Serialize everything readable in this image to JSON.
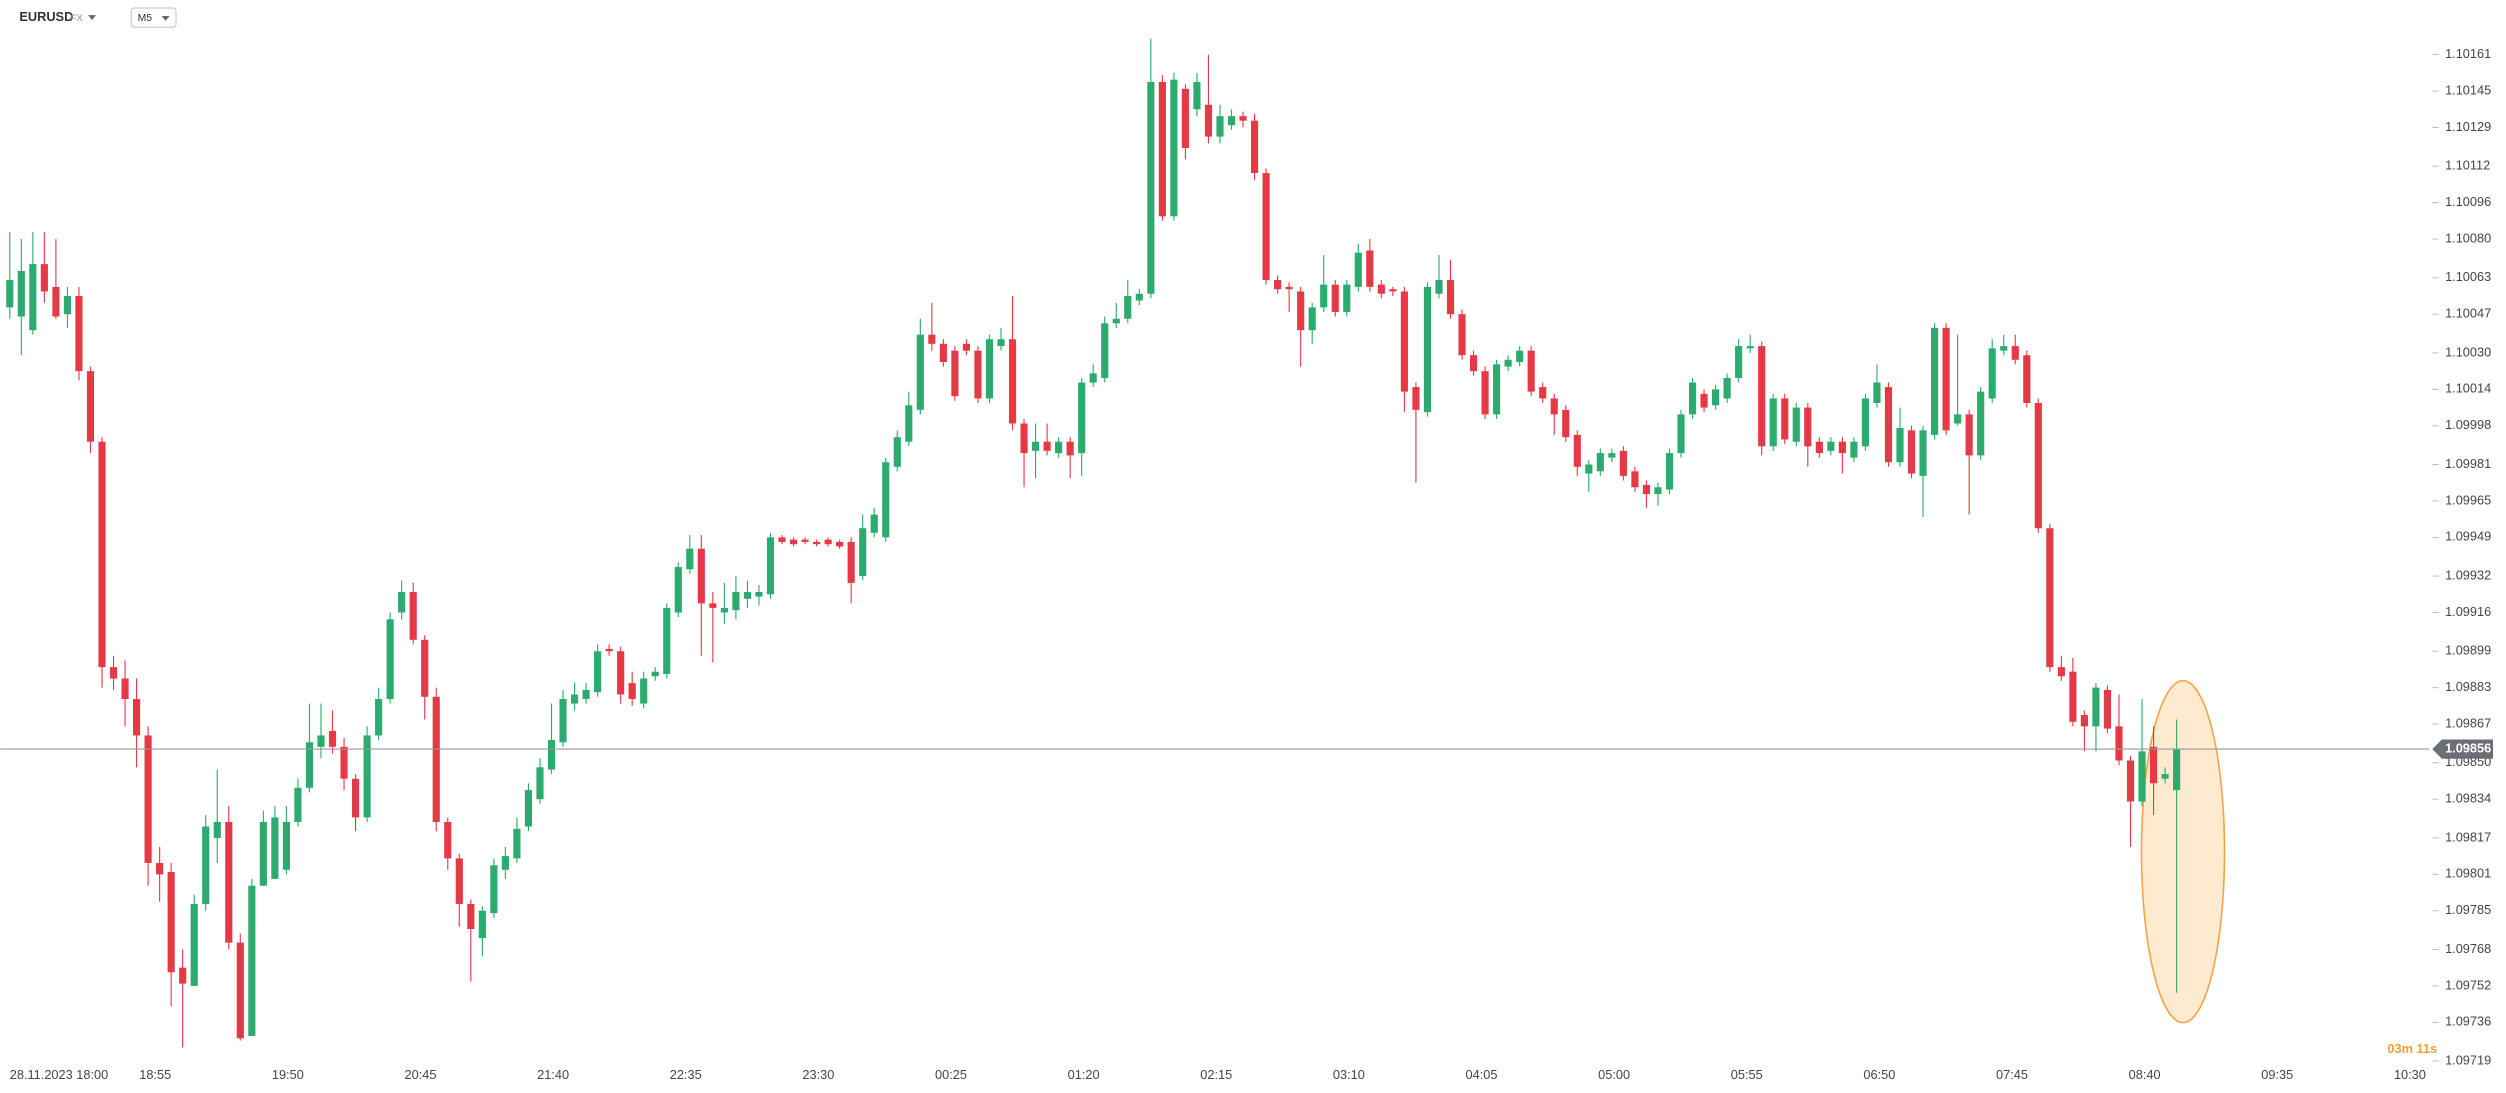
{
  "header": {
    "symbol": "EURUSD",
    "market": "FX",
    "timeframe": "M5"
  },
  "chart_data": {
    "type": "candlestick",
    "up_color": "#2bab6e",
    "down_color": "#e63946",
    "ylim": [
      1.09719,
      1.10185
    ],
    "yticks": [
      {
        "value": 1.10161,
        "label": "1.10161"
      },
      {
        "value": 1.10145,
        "label": "1.10145"
      },
      {
        "value": 1.10129,
        "label": "1.10129"
      },
      {
        "value": 1.10112,
        "label": "1.10112"
      },
      {
        "value": 1.10096,
        "label": "1.10096"
      },
      {
        "value": 1.1008,
        "label": "1.10080"
      },
      {
        "value": 1.10063,
        "label": "1.10063"
      },
      {
        "value": 1.10047,
        "label": "1.10047"
      },
      {
        "value": 1.1003,
        "label": "1.10030"
      },
      {
        "value": 1.10014,
        "label": "1.10014"
      },
      {
        "value": 1.09998,
        "label": "1.09998"
      },
      {
        "value": 1.09981,
        "label": "1.09981"
      },
      {
        "value": 1.09965,
        "label": "1.09965"
      },
      {
        "value": 1.09949,
        "label": "1.09949"
      },
      {
        "value": 1.09932,
        "label": "1.09932"
      },
      {
        "value": 1.09916,
        "label": "1.09916"
      },
      {
        "value": 1.09899,
        "label": "1.09899"
      },
      {
        "value": 1.09883,
        "label": "1.09883"
      },
      {
        "value": 1.09867,
        "label": "1.09867"
      },
      {
        "value": 1.0985,
        "label": "1.09850"
      },
      {
        "value": 1.09834,
        "label": "1.09834"
      },
      {
        "value": 1.09817,
        "label": "1.09817"
      },
      {
        "value": 1.09801,
        "label": "1.09801"
      },
      {
        "value": 1.09785,
        "label": "1.09785"
      },
      {
        "value": 1.09768,
        "label": "1.09768"
      },
      {
        "value": 1.09752,
        "label": "1.09752"
      },
      {
        "value": 1.09736,
        "label": "1.09736"
      },
      {
        "value": 1.09719,
        "label": "1.09719"
      }
    ],
    "start_label": "28.11.2023 18:00",
    "time_labels": [
      "18:55",
      "19:50",
      "20:45",
      "21:40",
      "22:35",
      "23:30",
      "00:25",
      "01:20",
      "02:15",
      "03:10",
      "04:05",
      "05:00",
      "05:55",
      "06:50",
      "07:45",
      "08:40",
      "09:35",
      "10:30"
    ],
    "current_price": {
      "value": 1.09856,
      "label": "1.09856"
    },
    "countdown": "03m 11s",
    "open": [
      1.1005,
      1.10046,
      1.1004,
      1.10069,
      1.10059,
      1.10047,
      1.10055,
      1.10022,
      1.09991,
      1.09892,
      1.09887,
      1.09878,
      1.09862,
      1.09806,
      1.09802,
      1.0976,
      1.09752,
      1.09788,
      1.09817,
      1.09824,
      1.09771,
      1.0973,
      1.09796,
      1.09799,
      1.09803,
      1.09824,
      1.09839,
      1.09857,
      1.09864,
      1.09857,
      1.09843,
      1.09826,
      1.09862,
      1.09878,
      1.09916,
      1.09925,
      1.09904,
      1.09879,
      1.09824,
      1.09808,
      1.09788,
      1.09773,
      1.09784,
      1.09803,
      1.09808,
      1.09822,
      1.09834,
      1.09847,
      1.09859,
      1.09876,
      1.09878,
      1.09881,
      1.099,
      1.09899,
      1.09885,
      1.09876,
      1.09888,
      1.09889,
      1.09916,
      1.09935,
      1.09944,
      1.0992,
      1.09916,
      1.09917,
      1.09922,
      1.09923,
      1.09924,
      1.09949,
      1.09948,
      1.09948,
      1.09947,
      1.09948,
      1.09947,
      1.09947,
      1.09932,
      1.09951,
      1.09949,
      1.0998,
      1.09991,
      1.10005,
      1.10038,
      1.10034,
      1.10031,
      1.10034,
      1.10031,
      1.1001,
      1.10033,
      1.10036,
      1.09999,
      1.09987,
      1.09991,
      1.09986,
      1.09991,
      1.09986,
      1.10017,
      1.10019,
      1.10043,
      1.10045,
      1.10053,
      1.10056,
      1.10149,
      1.1009,
      1.10146,
      1.10137,
      1.10139,
      1.10125,
      1.1013,
      1.10134,
      1.10132,
      1.10109,
      1.10062,
      1.10059,
      1.10057,
      1.1004,
      1.1005,
      1.1006,
      1.10048,
      1.10059,
      1.10075,
      1.1006,
      1.10058,
      1.10057,
      1.10015,
      1.10004,
      1.10056,
      1.10062,
      1.10047,
      1.10029,
      1.10022,
      1.10003,
      1.10024,
      1.10026,
      1.10031,
      1.10015,
      1.1001,
      1.10005,
      1.09994,
      1.09977,
      1.09978,
      1.09984,
      1.09987,
      1.09978,
      1.09972,
      1.09968,
      1.0997,
      1.09986,
      1.10003,
      1.10012,
      1.10007,
      1.1001,
      1.10019,
      1.10032,
      1.10033,
      1.09989,
      1.1001,
      1.09991,
      1.10006,
      1.09991,
      1.09987,
      1.09991,
      1.09984,
      1.09989,
      1.10008,
      1.10015,
      1.09982,
      1.09996,
      1.09976,
      1.09994,
      1.10041,
      1.09999,
      1.10003,
      1.09985,
      1.1001,
      1.10031,
      1.10033,
      1.10029,
      1.10008,
      1.09953,
      1.09892,
      1.0989,
      1.09871,
      1.09866,
      1.09882,
      1.09866,
      1.09851,
      1.09833,
      1.09857,
      1.09843,
      1.09838
    ],
    "high": [
      1.10083,
      1.1008,
      1.10083,
      1.10083,
      1.1008,
      1.10059,
      1.10059,
      1.10024,
      1.09993,
      1.09897,
      1.09895,
      1.09887,
      1.09866,
      1.09813,
      1.09806,
      1.09768,
      1.09792,
      1.09827,
      1.09847,
      1.09831,
      1.09775,
      1.09799,
      1.09829,
      1.09831,
      1.09831,
      1.09843,
      1.09876,
      1.09876,
      1.09873,
      1.09861,
      1.09845,
      1.09866,
      1.09883,
      1.09916,
      1.0993,
      1.09929,
      1.09906,
      1.09883,
      1.09826,
      1.0981,
      1.0979,
      1.09787,
      1.09808,
      1.09813,
      1.09826,
      1.09841,
      1.09852,
      1.09876,
      1.09882,
      1.09885,
      1.09885,
      1.09902,
      1.09902,
      1.09901,
      1.0989,
      1.0989,
      1.09892,
      1.0992,
      1.09938,
      1.0995,
      1.0995,
      1.09925,
      1.09929,
      1.09932,
      1.0993,
      1.09928,
      1.09951,
      1.0995,
      1.09949,
      1.09949,
      1.09948,
      1.09949,
      1.09948,
      1.09949,
      1.09959,
      1.09962,
      1.09984,
      1.09996,
      1.10013,
      1.10045,
      1.10052,
      1.10036,
      1.10033,
      1.10036,
      1.10033,
      1.10038,
      1.10041,
      1.10055,
      1.10001,
      1.09999,
      1.09999,
      1.09993,
      1.09993,
      1.10019,
      1.10025,
      1.10046,
      1.10052,
      1.10062,
      1.10058,
      1.10168,
      1.10152,
      1.10153,
      1.10148,
      1.10153,
      1.10161,
      1.10139,
      1.10137,
      1.10136,
      1.10135,
      1.10111,
      1.10064,
      1.10061,
      1.10059,
      1.10052,
      1.10073,
      1.10062,
      1.10062,
      1.10078,
      1.1008,
      1.10062,
      1.10059,
      1.10059,
      1.10017,
      1.10061,
      1.10073,
      1.10071,
      1.10049,
      1.10031,
      1.10024,
      1.10027,
      1.10029,
      1.10033,
      1.10033,
      1.10017,
      1.10012,
      1.10007,
      1.09996,
      1.09983,
      1.09988,
      1.09988,
      1.09989,
      1.0998,
      1.09974,
      1.09973,
      1.09988,
      1.10005,
      1.10019,
      1.10014,
      1.10016,
      1.10021,
      1.10036,
      1.10038,
      1.10035,
      1.10012,
      1.10012,
      1.10008,
      1.10008,
      1.09993,
      1.09993,
      1.09993,
      1.09993,
      1.10012,
      1.10025,
      1.10017,
      1.10006,
      1.09998,
      1.09998,
      1.10043,
      1.10043,
      1.10038,
      1.10005,
      1.10015,
      1.10036,
      1.10038,
      1.10038,
      1.10031,
      1.1001,
      1.09955,
      1.09897,
      1.09896,
      1.09873,
      1.09885,
      1.09884,
      1.0988,
      1.09853,
      1.09878,
      1.09866,
      1.09848,
      1.09869
    ],
    "low": [
      1.10045,
      1.10029,
      1.10038,
      1.10052,
      1.10045,
      1.10041,
      1.10018,
      1.09986,
      1.09883,
      1.09882,
      1.09866,
      1.09848,
      1.09796,
      1.09789,
      1.09743,
      1.09725,
      1.09752,
      1.09785,
      1.09806,
      1.09768,
      1.09728,
      1.0973,
      1.09796,
      1.09799,
      1.09801,
      1.09822,
      1.09837,
      1.09852,
      1.09854,
      1.09838,
      1.0982,
      1.09824,
      1.0986,
      1.09876,
      1.09913,
      1.09902,
      1.09869,
      1.0982,
      1.09803,
      1.09778,
      1.09754,
      1.09765,
      1.09782,
      1.09799,
      1.09806,
      1.0982,
      1.09832,
      1.09845,
      1.09857,
      1.09873,
      1.09876,
      1.09879,
      1.09897,
      1.09876,
      1.09875,
      1.09874,
      1.09886,
      1.09887,
      1.09914,
      1.09933,
      1.09897,
      1.09894,
      1.09911,
      1.09913,
      1.09918,
      1.09919,
      1.09922,
      1.09946,
      1.09945,
      1.09946,
      1.09945,
      1.09945,
      1.09944,
      1.0992,
      1.0993,
      1.09949,
      1.09947,
      1.09978,
      1.09989,
      1.10003,
      1.10031,
      1.10024,
      1.10009,
      1.10029,
      1.10008,
      1.10008,
      1.10031,
      1.09996,
      1.09971,
      1.09975,
      1.09985,
      1.09984,
      1.09975,
      1.09976,
      1.10015,
      1.10017,
      1.10041,
      1.10043,
      1.10051,
      1.10054,
      1.10088,
      1.10088,
      1.10115,
      1.10134,
      1.10122,
      1.10122,
      1.10128,
      1.10129,
      1.10106,
      1.1006,
      1.10056,
      1.10048,
      1.10024,
      1.10034,
      1.10048,
      1.10046,
      1.10046,
      1.10057,
      1.10057,
      1.10054,
      1.10055,
      1.10004,
      1.09973,
      1.10002,
      1.10054,
      1.10045,
      1.10027,
      1.1002,
      1.10001,
      1.10001,
      1.10022,
      1.10024,
      1.10011,
      1.10008,
      1.09994,
      1.09991,
      1.09976,
      1.09969,
      1.09976,
      1.09982,
      1.09974,
      1.09969,
      1.09962,
      1.09963,
      1.09968,
      1.09984,
      1.10001,
      1.10004,
      1.10005,
      1.10008,
      1.10017,
      1.1003,
      1.09985,
      1.09987,
      1.0999,
      1.09989,
      1.0998,
      1.09984,
      1.09985,
      1.09977,
      1.09982,
      1.09987,
      1.10006,
      1.0998,
      1.0998,
      1.09975,
      1.09958,
      1.09992,
      1.09994,
      1.09998,
      1.09959,
      1.09983,
      1.10008,
      1.10029,
      1.10025,
      1.10006,
      1.09951,
      1.0989,
      1.09886,
      1.09866,
      1.09855,
      1.09855,
      1.09863,
      1.09849,
      1.09813,
      1.09831,
      1.09827,
      1.09841,
      1.09749
    ],
    "close": [
      1.10062,
      1.10066,
      1.10069,
      1.10057,
      1.10046,
      1.10055,
      1.10022,
      1.09991,
      1.09892,
      1.09887,
      1.09878,
      1.09862,
      1.09806,
      1.09801,
      1.09758,
      1.09753,
      1.09788,
      1.09822,
      1.09824,
      1.09771,
      1.09729,
      1.09796,
      1.09824,
      1.09826,
      1.09824,
      1.09839,
      1.09859,
      1.09862,
      1.09857,
      1.09843,
      1.09826,
      1.09862,
      1.09878,
      1.09913,
      1.09925,
      1.09904,
      1.09879,
      1.09824,
      1.09808,
      1.09788,
      1.09777,
      1.09785,
      1.09805,
      1.09809,
      1.09821,
      1.09838,
      1.09848,
      1.0986,
      1.09878,
      1.0988,
      1.09882,
      1.09899,
      1.09899,
      1.0988,
      1.09878,
      1.09887,
      1.0989,
      1.09918,
      1.09936,
      1.09944,
      1.0992,
      1.09918,
      1.09918,
      1.09925,
      1.09925,
      1.09925,
      1.09949,
      1.09947,
      1.09946,
      1.09947,
      1.09946,
      1.09946,
      1.09945,
      1.09929,
      1.09953,
      1.09959,
      1.09982,
      1.09993,
      1.10007,
      1.10038,
      1.10034,
      1.10026,
      1.10011,
      1.10031,
      1.1001,
      1.10036,
      1.10036,
      1.09999,
      1.09986,
      1.09991,
      1.09987,
      1.09991,
      1.09985,
      1.10017,
      1.10021,
      1.10043,
      1.10045,
      1.10055,
      1.10056,
      1.10149,
      1.1009,
      1.1015,
      1.1012,
      1.10149,
      1.10125,
      1.10134,
      1.10134,
      1.10132,
      1.10109,
      1.10062,
      1.10058,
      1.10058,
      1.1004,
      1.1005,
      1.1006,
      1.10048,
      1.1006,
      1.10074,
      1.10059,
      1.10056,
      1.10057,
      1.10013,
      1.10005,
      1.10059,
      1.10062,
      1.10047,
      1.10029,
      1.10022,
      1.10003,
      1.10025,
      1.10027,
      1.10031,
      1.10013,
      1.1001,
      1.10003,
      1.09993,
      1.0998,
      1.09981,
      1.09986,
      1.09986,
      1.09976,
      1.09971,
      1.09968,
      1.09971,
      1.09986,
      1.10003,
      1.10017,
      1.10006,
      1.10014,
      1.10019,
      1.10033,
      1.10033,
      1.09989,
      1.1001,
      1.09992,
      1.10006,
      1.09989,
      1.09986,
      1.09991,
      1.09986,
      1.09991,
      1.1001,
      1.10017,
      1.09982,
      1.09997,
      1.09977,
      1.09996,
      1.10041,
      1.09996,
      1.10003,
      1.09985,
      1.10013,
      1.10032,
      1.10033,
      1.10027,
      1.10008,
      1.09953,
      1.09892,
      1.09888,
      1.09868,
      1.09866,
      1.09883,
      1.09865,
      1.09851,
      1.09833,
      1.09855,
      1.09841,
      1.09845,
      1.09856
    ]
  }
}
